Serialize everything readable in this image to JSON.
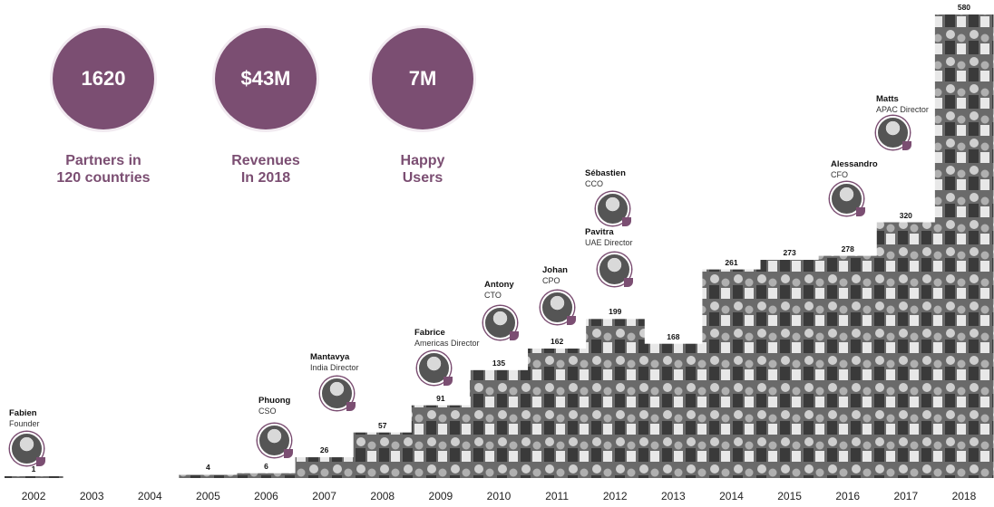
{
  "stats": [
    {
      "value": "1620",
      "label": "Partners in\n120 countries"
    },
    {
      "value": "$43M",
      "label": "Revenues\nIn 2018"
    },
    {
      "value": "7M",
      "label": "Happy\nUsers"
    }
  ],
  "chart_data": {
    "type": "bar",
    "categories": [
      "2002",
      "2003",
      "2004",
      "2005",
      "2006",
      "2007",
      "2008",
      "2009",
      "2010",
      "2011",
      "2012",
      "2013",
      "2014",
      "2015",
      "2016",
      "2017",
      "2018"
    ],
    "values": [
      1,
      null,
      null,
      4,
      6,
      26,
      57,
      91,
      135,
      162,
      199,
      168,
      261,
      273,
      278,
      320,
      580
    ],
    "value_labels": [
      "1",
      "",
      "",
      "4",
      "6",
      "26",
      "57",
      "91",
      "135",
      "162",
      "199",
      "168",
      "261",
      "273",
      "278",
      "320",
      "580"
    ],
    "ylim": [
      0,
      580
    ]
  },
  "people": [
    {
      "name": "Fabien",
      "role": "Founder"
    },
    {
      "name": "Phuong",
      "role": "CSO"
    },
    {
      "name": "Mantavya",
      "role": "India Director"
    },
    {
      "name": "Fabrice",
      "role": "Americas Director"
    },
    {
      "name": "Antony",
      "role": "CTO"
    },
    {
      "name": "Johan",
      "role": "CPO"
    },
    {
      "name": "Sébastien",
      "role": "CCO"
    },
    {
      "name": "Pavitra",
      "role": "UAE Director"
    },
    {
      "name": "Alessandro",
      "role": "CFO"
    },
    {
      "name": "Matts",
      "role": "APAC Director"
    }
  ],
  "colors": {
    "accent": "#7b4e72",
    "photo": "#5a5a5a"
  }
}
